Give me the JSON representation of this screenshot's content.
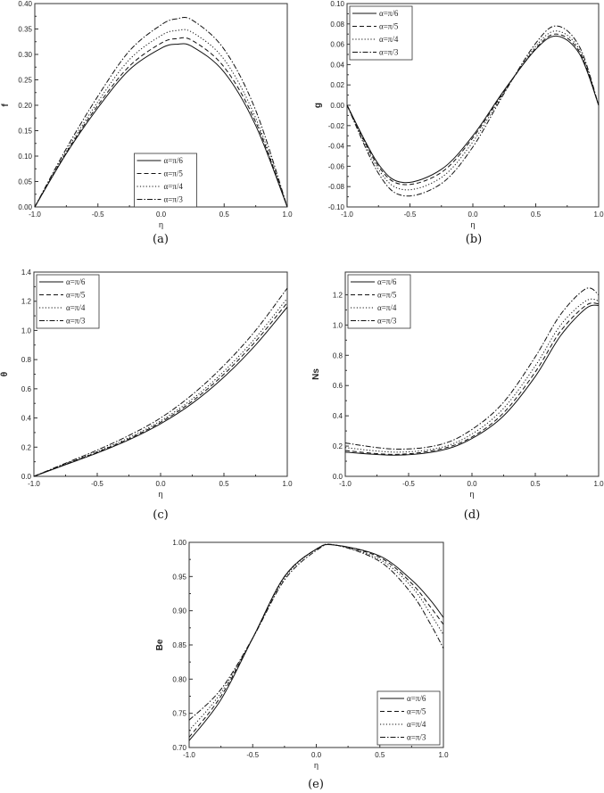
{
  "chart_data": [
    {
      "type": "line",
      "caption": "(a)",
      "xlabel": "η",
      "ylabel": "f",
      "xlim": [
        -1,
        1
      ],
      "ylim": [
        0,
        0.4
      ],
      "xticks": [
        "-1.0",
        "-0.5",
        "0.0",
        "0.5",
        "1.0"
      ],
      "yticks": [
        "0.00",
        "0.05",
        "0.10",
        "0.15",
        "0.20",
        "0.25",
        "0.30",
        "0.35",
        "0.40"
      ],
      "legend_position": "bottom-center",
      "grid": false,
      "x": [
        -1,
        -0.75,
        -0.5,
        -0.25,
        0,
        0.125,
        0.25,
        0.5,
        0.75,
        1
      ],
      "series": [
        {
          "name": "α=π/6",
          "style": "solid",
          "values": [
            0,
            0.105,
            0.195,
            0.27,
            0.312,
            0.32,
            0.315,
            0.265,
            0.16,
            0
          ]
        },
        {
          "name": "α=π/5",
          "style": "dash",
          "values": [
            0,
            0.107,
            0.2,
            0.277,
            0.322,
            0.331,
            0.327,
            0.275,
            0.167,
            0
          ]
        },
        {
          "name": "α=π/4",
          "style": "dot",
          "values": [
            0,
            0.11,
            0.207,
            0.29,
            0.337,
            0.347,
            0.343,
            0.29,
            0.175,
            0
          ]
        },
        {
          "name": "α=π/3",
          "style": "dashdot",
          "values": [
            0,
            0.115,
            0.218,
            0.307,
            0.358,
            0.37,
            0.367,
            0.31,
            0.19,
            0
          ]
        }
      ]
    },
    {
      "type": "line",
      "caption": "(b)",
      "xlabel": "η",
      "ylabel": "g",
      "xlim": [
        -1,
        1
      ],
      "ylim": [
        -0.1,
        0.1
      ],
      "xticks": [
        "-1.0",
        "-0.5",
        "0.0",
        "0.5",
        "1.0"
      ],
      "yticks": [
        "-0.10",
        "-0.08",
        "-0.06",
        "-0.04",
        "-0.02",
        "0.00",
        "0.02",
        "0.04",
        "0.06",
        "0.08",
        "0.10"
      ],
      "legend_position": "top-left",
      "grid": false,
      "x": [
        -1,
        -0.75,
        -0.55,
        -0.25,
        0,
        0.25,
        0.5,
        0.67,
        0.85,
        1
      ],
      "series": [
        {
          "name": "α=π/6",
          "style": "solid",
          "values": [
            0,
            -0.058,
            -0.076,
            -0.063,
            -0.03,
            0.015,
            0.055,
            0.068,
            0.05,
            0
          ]
        },
        {
          "name": "α=π/5",
          "style": "dash",
          "values": [
            0,
            -0.06,
            -0.078,
            -0.066,
            -0.032,
            0.014,
            0.056,
            0.07,
            0.052,
            0
          ]
        },
        {
          "name": "α=π/4",
          "style": "dot",
          "values": [
            0,
            -0.063,
            -0.083,
            -0.071,
            -0.036,
            0.013,
            0.058,
            0.073,
            0.054,
            0
          ]
        },
        {
          "name": "α=π/3",
          "style": "dashdot",
          "values": [
            0,
            -0.067,
            -0.089,
            -0.077,
            -0.041,
            0.012,
            0.061,
            0.078,
            0.057,
            0
          ]
        }
      ]
    },
    {
      "type": "line",
      "caption": "(c)",
      "xlabel": "η",
      "ylabel": "θ",
      "xlim": [
        -1,
        1
      ],
      "ylim": [
        0,
        1.4
      ],
      "xticks": [
        "-1.0",
        "-0.5",
        "0.0",
        "0.5",
        "1.0"
      ],
      "yticks": [
        "0.0",
        "0.2",
        "0.4",
        "0.6",
        "0.8",
        "1.0",
        "1.2",
        "1.4"
      ],
      "legend_position": "top-left",
      "grid": false,
      "x": [
        -1,
        -0.75,
        -0.5,
        -0.25,
        0,
        0.25,
        0.5,
        0.75,
        1
      ],
      "series": [
        {
          "name": "α=π/6",
          "style": "solid",
          "values": [
            0,
            0.08,
            0.16,
            0.25,
            0.36,
            0.5,
            0.68,
            0.9,
            1.16
          ]
        },
        {
          "name": "α=π/5",
          "style": "dash",
          "values": [
            0,
            0.083,
            0.165,
            0.257,
            0.37,
            0.515,
            0.7,
            0.925,
            1.19
          ]
        },
        {
          "name": "α=π/4",
          "style": "dot",
          "values": [
            0,
            0.086,
            0.17,
            0.265,
            0.38,
            0.53,
            0.72,
            0.95,
            1.22
          ]
        },
        {
          "name": "α=π/3",
          "style": "dashdot",
          "values": [
            0,
            0.09,
            0.18,
            0.28,
            0.4,
            0.56,
            0.76,
            1.0,
            1.29
          ]
        }
      ]
    },
    {
      "type": "line",
      "caption": "(d)",
      "xlabel": "η",
      "ylabel": "Ns",
      "xlim": [
        -1,
        1
      ],
      "ylim": [
        0,
        1.35
      ],
      "xticks": [
        "-1.0",
        "-0.5",
        "0.0",
        "0.5",
        "1.0"
      ],
      "yticks": [
        "0.0",
        "0.2",
        "0.4",
        "0.6",
        "0.8",
        "1.0",
        "1.2"
      ],
      "legend_position": "top-left",
      "grid": false,
      "x": [
        -1,
        -0.6,
        -0.25,
        0,
        0.25,
        0.5,
        0.7,
        0.9,
        1
      ],
      "series": [
        {
          "name": "α=π/6",
          "style": "solid",
          "values": [
            0.16,
            0.14,
            0.17,
            0.25,
            0.4,
            0.66,
            0.93,
            1.11,
            1.13
          ]
        },
        {
          "name": "α=π/5",
          "style": "dash",
          "values": [
            0.17,
            0.145,
            0.18,
            0.26,
            0.42,
            0.69,
            0.96,
            1.13,
            1.14
          ]
        },
        {
          "name": "α=π/4",
          "style": "dot",
          "values": [
            0.19,
            0.16,
            0.19,
            0.28,
            0.45,
            0.73,
            1.0,
            1.16,
            1.16
          ]
        },
        {
          "name": "α=π/3",
          "style": "dashdot",
          "values": [
            0.22,
            0.18,
            0.21,
            0.31,
            0.49,
            0.79,
            1.07,
            1.24,
            1.2
          ]
        }
      ]
    },
    {
      "type": "line",
      "caption": "(e)",
      "xlabel": "η",
      "ylabel": "Be",
      "xlim": [
        -1,
        1
      ],
      "ylim": [
        0.7,
        1.0
      ],
      "xticks": [
        "-1.0",
        "-0.5",
        "0.0",
        "0.5",
        "1.0"
      ],
      "yticks": [
        "0.70",
        "0.75",
        "0.80",
        "0.85",
        "0.90",
        "0.95",
        "1.00"
      ],
      "legend_position": "bottom-right",
      "grid": false,
      "x": [
        -1,
        -0.75,
        -0.5,
        -0.25,
        0,
        0.15,
        0.5,
        0.75,
        0.9,
        1
      ],
      "series": [
        {
          "name": "α=π/6",
          "style": "solid",
          "values": [
            0.71,
            0.77,
            0.86,
            0.95,
            0.99,
            0.996,
            0.98,
            0.945,
            0.915,
            0.89
          ]
        },
        {
          "name": "α=π/5",
          "style": "dash",
          "values": [
            0.715,
            0.775,
            0.86,
            0.95,
            0.99,
            0.996,
            0.978,
            0.94,
            0.905,
            0.88
          ]
        },
        {
          "name": "α=π/4",
          "style": "dot",
          "values": [
            0.725,
            0.78,
            0.86,
            0.948,
            0.99,
            0.996,
            0.975,
            0.935,
            0.895,
            0.865
          ]
        },
        {
          "name": "α=π/3",
          "style": "dashdot",
          "values": [
            0.74,
            0.785,
            0.86,
            0.945,
            0.988,
            0.996,
            0.972,
            0.925,
            0.88,
            0.845
          ]
        }
      ]
    }
  ]
}
